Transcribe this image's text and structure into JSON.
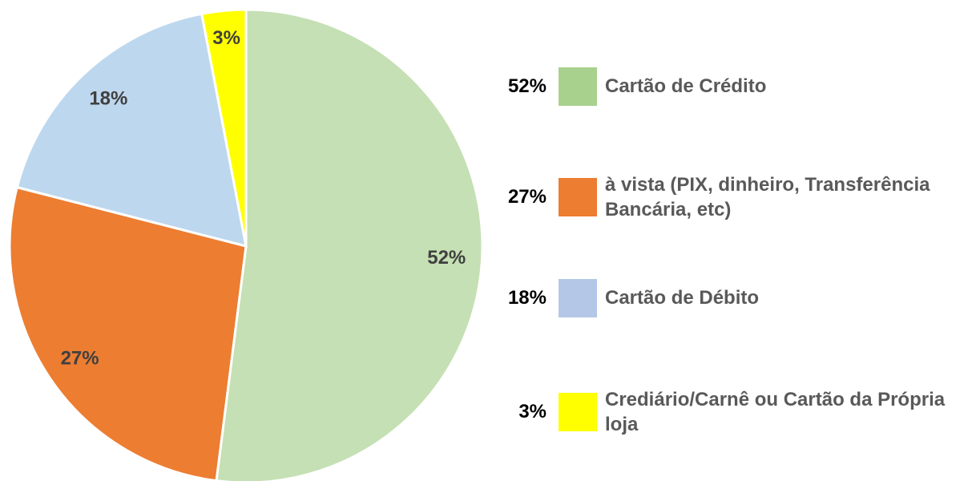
{
  "chart_data": {
    "type": "pie",
    "categories": [
      "Cartão de Crédito",
      "à vista (PIX, dinheiro, Transferência Bancária, etc)",
      "Cartão de Débito",
      "Crediário/Carnê ou Cartão da Própria loja"
    ],
    "values": [
      52,
      27,
      18,
      3
    ],
    "value_labels": [
      "52%",
      "27%",
      "18%",
      "3%"
    ],
    "colors": [
      "#c5e0b4",
      "#ed7d31",
      "#bdd7ee",
      "#ffff00"
    ],
    "legend_colors": [
      "#a9d18e",
      "#ed7d31",
      "#b4c7e7",
      "#ffff00"
    ],
    "legend": "right"
  }
}
